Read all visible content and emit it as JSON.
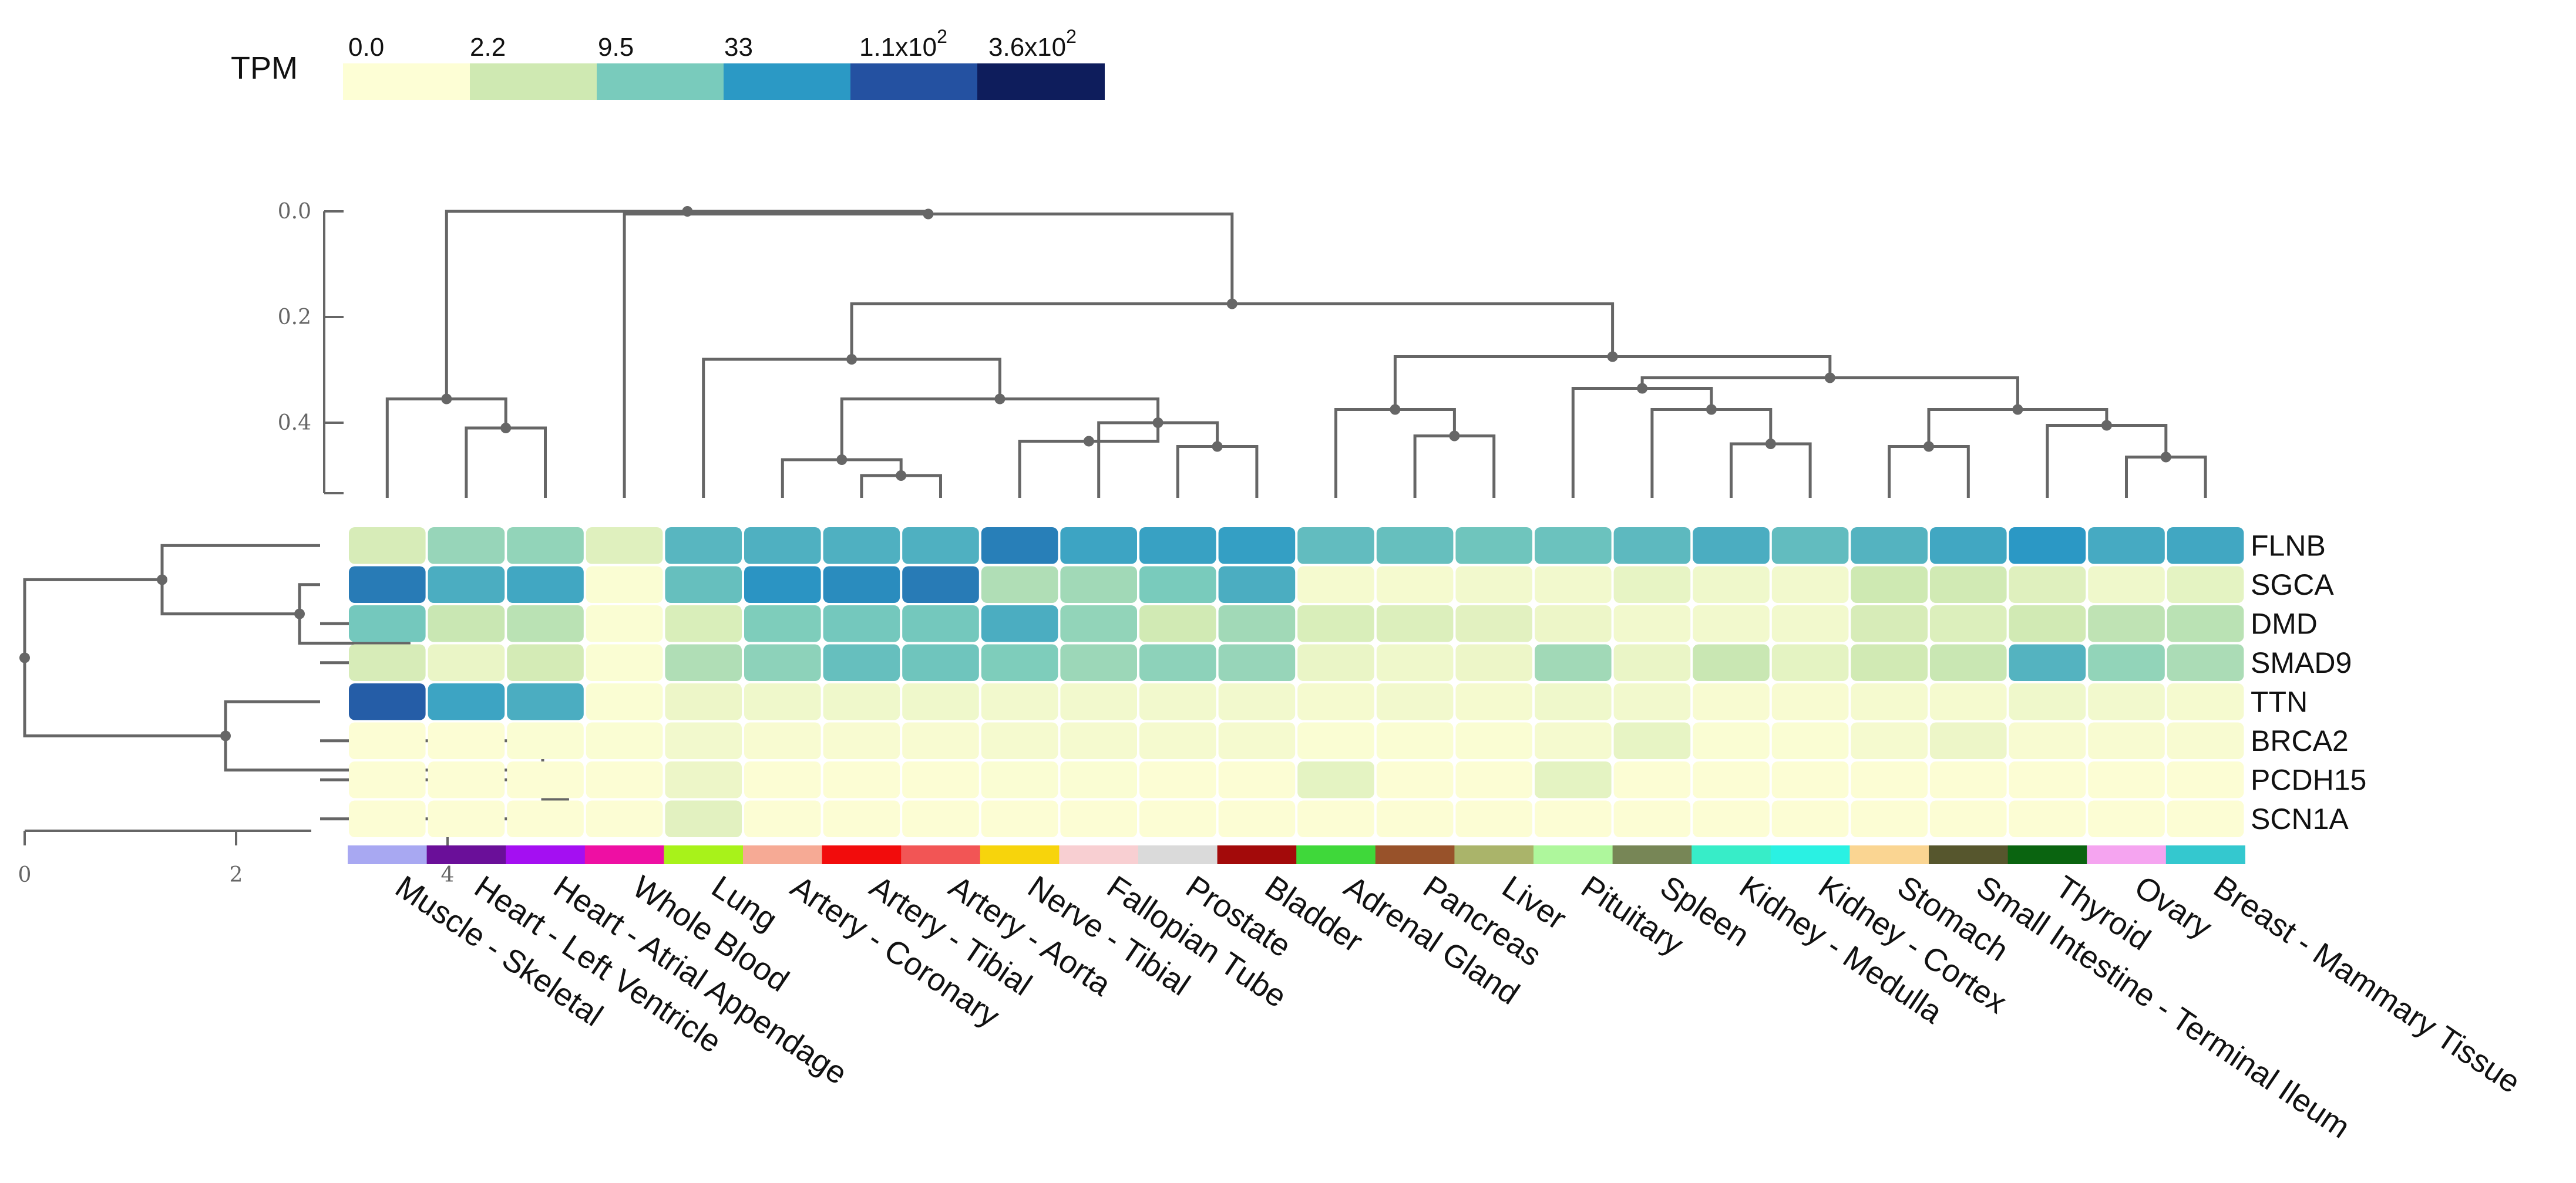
{
  "chart_data": {
    "type": "heatmap",
    "title": "",
    "legend": {
      "title": "TPM",
      "labels": [
        {
          "base": "0.0"
        },
        {
          "base": "2.2"
        },
        {
          "base": "9.5"
        },
        {
          "base": "33"
        },
        {
          "base": "1.1x10",
          "sup": "2"
        },
        {
          "base": "3.6x10",
          "sup": "2"
        }
      ],
      "colors": [
        "#fdfed5",
        "#cfe9b2",
        "#79cbbc",
        "#2b99c5",
        "#2451a1",
        "#0e1d5c"
      ]
    },
    "genes": [
      "FLNB",
      "SGCA",
      "DMD",
      "SMAD9",
      "TTN",
      "BRCA2",
      "PCDH15",
      "SCN1A"
    ],
    "tissues": [
      {
        "name": "Muscle - Skeletal",
        "color": "#a8a8f2"
      },
      {
        "name": "Heart - Left Ventricle",
        "color": "#6a0f99"
      },
      {
        "name": "Heart - Atrial Appendage",
        "color": "#a40ff2"
      },
      {
        "name": "Whole Blood",
        "color": "#ee0fa3"
      },
      {
        "name": "Lung",
        "color": "#a8f21a"
      },
      {
        "name": "Artery - Coronary",
        "color": "#f6aa95"
      },
      {
        "name": "Artery - Tibial",
        "color": "#f20c0c"
      },
      {
        "name": "Artery - Aorta",
        "color": "#f25555"
      },
      {
        "name": "Nerve - Tibial",
        "color": "#f7d40c"
      },
      {
        "name": "Fallopian Tube",
        "color": "#f8cfd2"
      },
      {
        "name": "Prostate",
        "color": "#dadada"
      },
      {
        "name": "Bladder",
        "color": "#a30a0a"
      },
      {
        "name": "Adrenal Gland",
        "color": "#3fd83a"
      },
      {
        "name": "Pancreas",
        "color": "#98522a"
      },
      {
        "name": "Liver",
        "color": "#aab46a"
      },
      {
        "name": "Pituitary",
        "color": "#aef79c"
      },
      {
        "name": "Spleen",
        "color": "#778656"
      },
      {
        "name": "Kidney - Medulla",
        "color": "#37edc8"
      },
      {
        "name": "Kidney - Cortex",
        "color": "#2af1e3"
      },
      {
        "name": "Stomach",
        "color": "#fad592"
      },
      {
        "name": "Small Intestine - Terminal Ileum",
        "color": "#56562d"
      },
      {
        "name": "Thyroid",
        "color": "#0a6410"
      },
      {
        "name": "Ovary",
        "color": "#f5a4f0"
      },
      {
        "name": "Breast - Mammary Tissue",
        "color": "#34c8cf"
      }
    ],
    "values": [
      [
        1.4,
        2.8,
        2.9,
        1.1,
        4.1,
        4.3,
        4.3,
        4.3,
        5.7,
        4.7,
        4.8,
        4.9,
        3.9,
        3.8,
        3.6,
        3.7,
        4.0,
        4.4,
        3.9,
        4.2,
        4.6,
        5.1,
        4.5,
        4.6
      ],
      [
        5.8,
        4.4,
        4.6,
        0.1,
        3.8,
        5.2,
        5.4,
        5.8,
        2.3,
        2.6,
        3.4,
        4.4,
        0.3,
        0.3,
        0.4,
        0.4,
        0.8,
        0.5,
        0.4,
        1.7,
        1.6,
        1.1,
        0.5,
        0.9
      ],
      [
        3.5,
        1.8,
        2.1,
        0.1,
        1.3,
        3.3,
        3.5,
        3.5,
        4.4,
        2.9,
        1.6,
        2.6,
        1.3,
        1.2,
        1.0,
        0.6,
        0.4,
        0.4,
        0.4,
        1.4,
        1.2,
        1.6,
        2.0,
        2.1
      ],
      [
        1.4,
        0.7,
        1.5,
        0.1,
        2.3,
        3.0,
        3.8,
        3.6,
        3.3,
        2.7,
        3.0,
        2.8,
        0.7,
        0.5,
        0.6,
        2.6,
        0.7,
        1.8,
        0.9,
        1.6,
        1.8,
        4.2,
        2.9,
        2.4
      ],
      [
        6.5,
        4.7,
        4.4,
        0.1,
        0.6,
        0.5,
        0.5,
        0.5,
        0.4,
        0.4,
        0.4,
        0.4,
        0.3,
        0.4,
        0.3,
        0.5,
        0.4,
        0.2,
        0.2,
        0.3,
        0.3,
        0.5,
        0.4,
        0.3
      ],
      [
        0.05,
        0.05,
        0.1,
        0.1,
        0.4,
        0.2,
        0.2,
        0.2,
        0.3,
        0.3,
        0.3,
        0.3,
        0.1,
        0.1,
        0.1,
        0.3,
        0.8,
        0.1,
        0.1,
        0.3,
        0.6,
        0.2,
        0.2,
        0.2
      ],
      [
        0.05,
        0.05,
        0.05,
        0.05,
        0.6,
        0.05,
        0.05,
        0.05,
        0.1,
        0.1,
        0.05,
        0.05,
        0.9,
        0.05,
        0.05,
        0.9,
        0.05,
        0.05,
        0.05,
        0.05,
        0.05,
        0.05,
        0.05,
        0.05
      ],
      [
        0.05,
        0.05,
        0.05,
        0.05,
        1.0,
        0.05,
        0.05,
        0.05,
        0.05,
        0.05,
        0.05,
        0.05,
        0.05,
        0.05,
        0.05,
        0.05,
        0.05,
        0.05,
        0.05,
        0.05,
        0.05,
        0.05,
        0.05,
        0.05
      ]
    ],
    "col_dendrogram_axis": {
      "ticks": [
        "0.0",
        "0.2",
        "0.4"
      ],
      "range": [
        0,
        0.55
      ]
    },
    "row_dendrogram_axis": {
      "ticks": [
        "0",
        "2",
        "4"
      ],
      "range": [
        0,
        5.4
      ]
    }
  }
}
